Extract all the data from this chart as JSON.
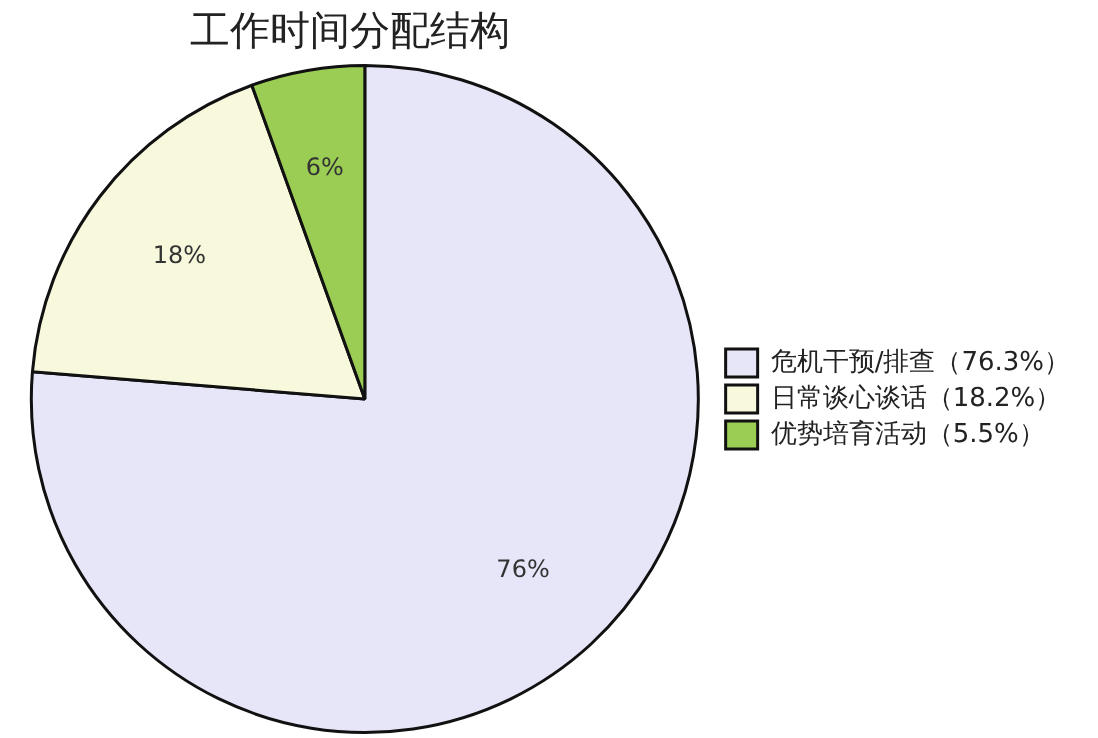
{
  "chart_data": {
    "type": "pie",
    "title": "工作时间分配结构",
    "categories": [
      "危机干预/排查（76.3%）",
      "日常谈心谈话（18.2%）",
      "优势培育活动（5.5%）"
    ],
    "values": [
      76.3,
      18.2,
      5.5
    ],
    "colors": [
      "#e6e6f8",
      "#f8f8dc",
      "#9bcd55"
    ],
    "value_labels": [
      "76%",
      "18%",
      "6%"
    ],
    "legend": "right"
  }
}
